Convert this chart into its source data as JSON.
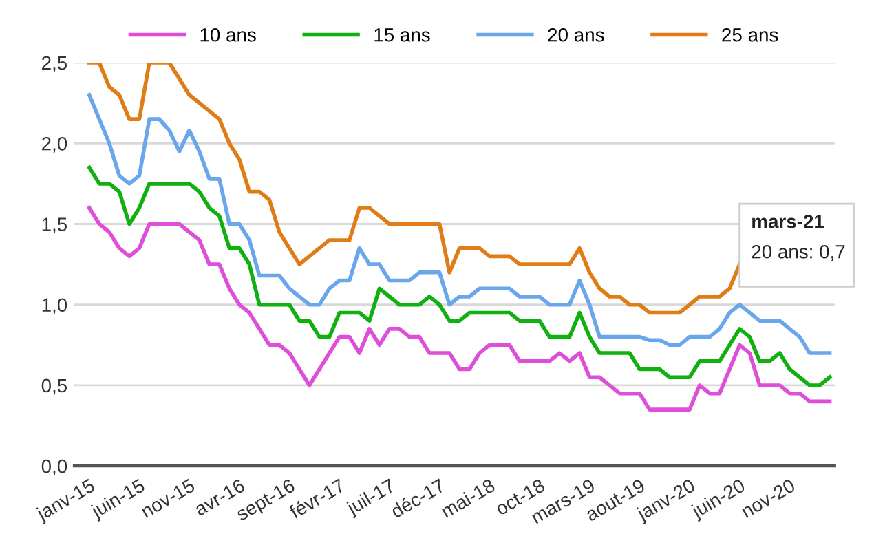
{
  "chart_data": {
    "type": "line",
    "categories": [
      "janv-15",
      null,
      null,
      null,
      null,
      "juin-15",
      null,
      null,
      null,
      null,
      "nov-15",
      null,
      null,
      null,
      null,
      "avr-16",
      null,
      null,
      null,
      null,
      "sept-16",
      null,
      null,
      null,
      null,
      "févr-17",
      null,
      null,
      null,
      null,
      "juil-17",
      null,
      null,
      null,
      null,
      "déc-17",
      null,
      null,
      null,
      null,
      "mai-18",
      null,
      null,
      null,
      null,
      "oct-18",
      null,
      null,
      null,
      null,
      "mars-19",
      null,
      null,
      null,
      null,
      "aout-19",
      null,
      null,
      null,
      null,
      "janv-20",
      null,
      null,
      null,
      null,
      "juin-20",
      null,
      null,
      null,
      null,
      "nov-20",
      null,
      null,
      null,
      null
    ],
    "series": [
      {
        "name": "10 ans",
        "color": "#dd4fd8",
        "values": [
          1.6,
          1.5,
          1.45,
          1.35,
          1.3,
          1.35,
          1.5,
          1.5,
          1.5,
          1.5,
          1.45,
          1.4,
          1.25,
          1.25,
          1.1,
          1.0,
          0.95,
          0.85,
          0.75,
          0.75,
          0.7,
          0.6,
          0.5,
          0.6,
          0.7,
          0.8,
          0.8,
          0.7,
          0.85,
          0.75,
          0.85,
          0.85,
          0.8,
          0.8,
          0.7,
          0.7,
          0.7,
          0.6,
          0.6,
          0.7,
          0.75,
          0.75,
          0.75,
          0.65,
          0.65,
          0.65,
          0.65,
          0.7,
          0.65,
          0.7,
          0.55,
          0.55,
          0.5,
          0.45,
          0.45,
          0.45,
          0.35,
          0.35,
          0.35,
          0.35,
          0.35,
          0.5,
          0.45,
          0.45,
          0.6,
          0.75,
          0.7,
          0.5,
          0.5,
          0.5,
          0.45,
          0.45,
          0.4,
          0.4,
          0.4
        ]
      },
      {
        "name": "15 ans",
        "color": "#10b010",
        "values": [
          1.85,
          1.75,
          1.75,
          1.7,
          1.5,
          1.6,
          1.75,
          1.75,
          1.75,
          1.75,
          1.75,
          1.7,
          1.6,
          1.55,
          1.35,
          1.35,
          1.25,
          1.0,
          1.0,
          1.0,
          1.0,
          0.9,
          0.9,
          0.8,
          0.8,
          0.95,
          0.95,
          0.95,
          0.9,
          1.1,
          1.05,
          1.0,
          1.0,
          1.0,
          1.05,
          1.0,
          0.9,
          0.9,
          0.95,
          0.95,
          0.95,
          0.95,
          0.95,
          0.9,
          0.9,
          0.9,
          0.8,
          0.8,
          0.8,
          0.95,
          0.8,
          0.7,
          0.7,
          0.7,
          0.7,
          0.6,
          0.6,
          0.6,
          0.55,
          0.55,
          0.55,
          0.65,
          0.65,
          0.65,
          0.75,
          0.85,
          0.8,
          0.65,
          0.65,
          0.7,
          0.6,
          0.55,
          0.5,
          0.5,
          0.55
        ]
      },
      {
        "name": "20 ans",
        "color": "#6aa6ec",
        "values": [
          2.3,
          2.15,
          2.0,
          1.8,
          1.75,
          1.8,
          2.15,
          2.15,
          2.08,
          1.95,
          2.08,
          1.95,
          1.78,
          1.78,
          1.5,
          1.5,
          1.4,
          1.18,
          1.18,
          1.18,
          1.1,
          1.05,
          1.0,
          1.0,
          1.1,
          1.15,
          1.15,
          1.35,
          1.25,
          1.25,
          1.15,
          1.15,
          1.15,
          1.2,
          1.2,
          1.2,
          1.0,
          1.05,
          1.05,
          1.1,
          1.1,
          1.1,
          1.1,
          1.05,
          1.05,
          1.05,
          1.0,
          1.0,
          1.0,
          1.15,
          1.0,
          0.8,
          0.8,
          0.8,
          0.8,
          0.8,
          0.78,
          0.78,
          0.75,
          0.75,
          0.8,
          0.8,
          0.8,
          0.85,
          0.95,
          1.0,
          0.95,
          0.9,
          0.9,
          0.9,
          0.85,
          0.8,
          0.7,
          0.7,
          0.7
        ]
      },
      {
        "name": "25 ans",
        "color": "#e07c16",
        "values": [
          2.5,
          2.5,
          2.35,
          2.3,
          2.15,
          2.15,
          2.5,
          2.5,
          2.5,
          2.4,
          2.3,
          2.25,
          2.2,
          2.15,
          2.0,
          1.9,
          1.7,
          1.7,
          1.65,
          1.45,
          1.35,
          1.25,
          1.3,
          1.35,
          1.4,
          1.4,
          1.4,
          1.6,
          1.6,
          1.55,
          1.5,
          1.5,
          1.5,
          1.5,
          1.5,
          1.5,
          1.2,
          1.35,
          1.35,
          1.35,
          1.3,
          1.3,
          1.3,
          1.25,
          1.25,
          1.25,
          1.25,
          1.25,
          1.25,
          1.35,
          1.2,
          1.1,
          1.05,
          1.05,
          1.0,
          1.0,
          0.95,
          0.95,
          0.95,
          0.95,
          1.0,
          1.05,
          1.05,
          1.05,
          1.1,
          1.25,
          null,
          null,
          null,
          null,
          null,
          null,
          null,
          null,
          null
        ]
      }
    ],
    "ylim": [
      0,
      2.5
    ],
    "yticks": [
      {
        "value": 0,
        "label": "0,0"
      },
      {
        "value": 0.5,
        "label": "0,5"
      },
      {
        "value": 1,
        "label": "1,0"
      },
      {
        "value": 1.5,
        "label": "1,5"
      },
      {
        "value": 2,
        "label": "2,0"
      },
      {
        "value": 2.5,
        "label": "2,5"
      }
    ],
    "grid": "y",
    "legend": "top",
    "marker": "none",
    "line_style": "solid",
    "annotations": [
      "mars-21",
      "20 ans: 0,7"
    ]
  }
}
